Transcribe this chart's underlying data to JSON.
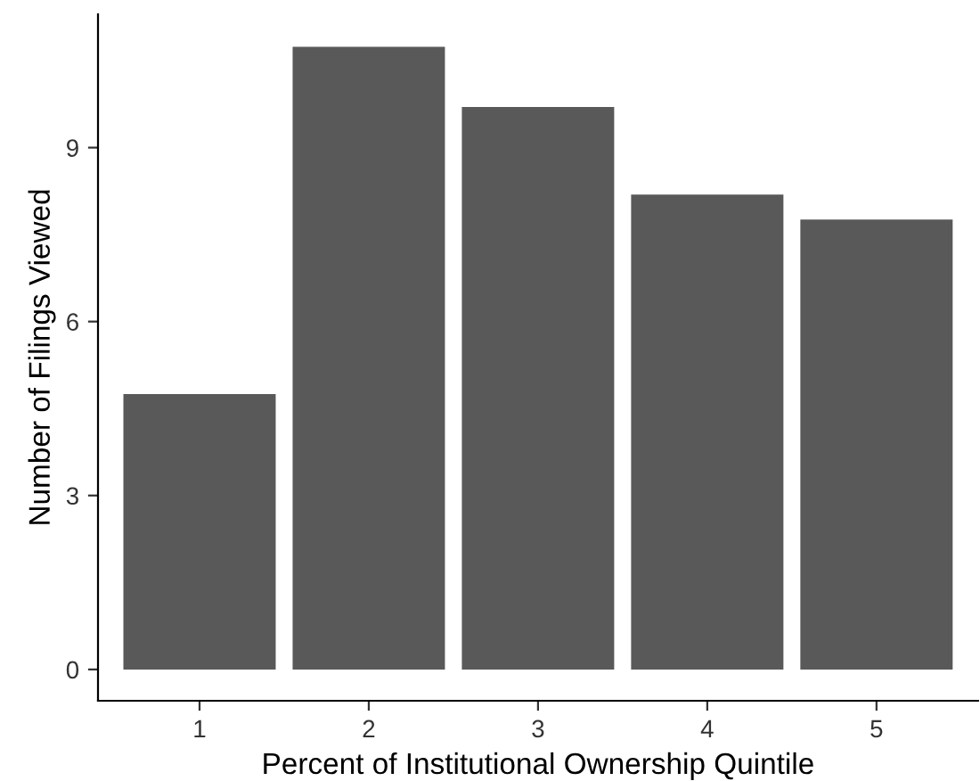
{
  "chart_data": {
    "type": "bar",
    "xlabel": "Percent of Institutional Ownership Quintile",
    "ylabel": "Number of Filings Viewed",
    "categories": [
      "1",
      "2",
      "3",
      "4",
      "5"
    ],
    "values": [
      4.75,
      10.74,
      9.7,
      8.19,
      7.76
    ],
    "color": "#595959",
    "ylim": [
      -0.54,
      11.3
    ],
    "yticks": [
      0,
      3,
      6,
      9
    ],
    "grid": false,
    "legend": false
  }
}
